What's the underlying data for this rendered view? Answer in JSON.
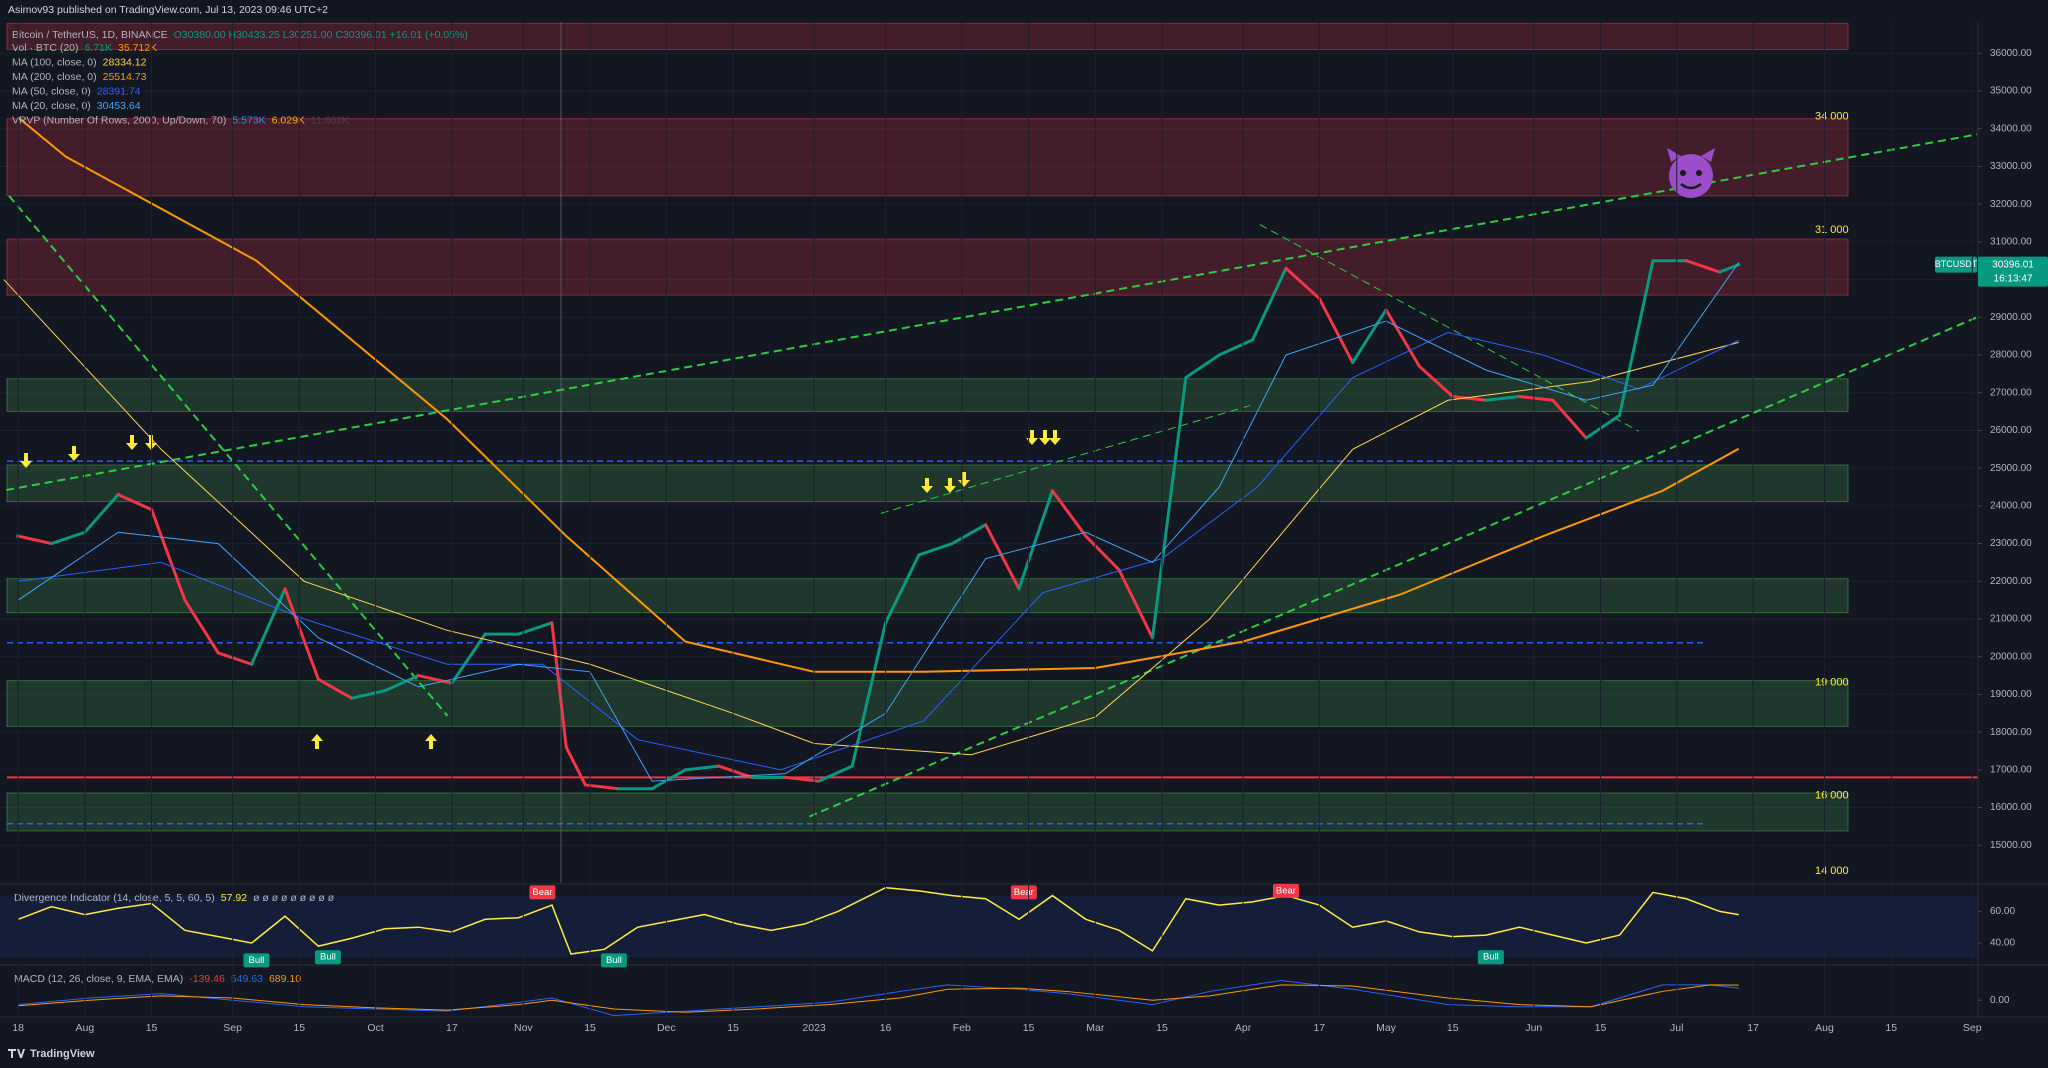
{
  "header": "Asimov93 published on TradingView.com, Jul 13, 2023 09:46 UTC+2",
  "footer": "TradingView",
  "chart_data": [
    {
      "type": "line",
      "title": "Bitcoin / TetherUS, 1D, BINANCE",
      "quote": "O30380.00 H30433.25 L30251.00 C30396.01 +16.01 (+0.05%)",
      "volume_legend": {
        "label": "Vol · BTC (20)",
        "values": [
          "6.71K",
          "35.712K"
        ],
        "colors": [
          "#089981",
          "#ff9800"
        ]
      },
      "vrvp_legend": {
        "label": "VRVP (Number Of Rows, 2000, Up/Down, 70)",
        "values": [
          "5.573K",
          "6.029K",
          "11.602K"
        ],
        "colors": [
          "#2196f3",
          "#ffb300",
          "#434651"
        ]
      },
      "countdown": "16:13:47",
      "xlim": [
        -3.8,
        411.2
      ],
      "ylim": [
        14000,
        36830
      ],
      "grid": true,
      "up_color": "#089981",
      "down_color": "#f23645",
      "xticks": [
        {
          "value": 0,
          "label": "18"
        },
        {
          "value": 14,
          "label": "Aug"
        },
        {
          "value": 28,
          "label": "15"
        },
        {
          "value": 45,
          "label": "Sep"
        },
        {
          "value": 59,
          "label": "15"
        },
        {
          "value": 75,
          "label": "Oct"
        },
        {
          "value": 91,
          "label": "17"
        },
        {
          "value": 106,
          "label": "Nov"
        },
        {
          "value": 120,
          "label": "15"
        },
        {
          "value": 136,
          "label": "Dec"
        },
        {
          "value": 150,
          "label": "15"
        },
        {
          "value": 167,
          "label": "2023"
        },
        {
          "value": 182,
          "label": "16"
        },
        {
          "value": 198,
          "label": "Feb"
        },
        {
          "value": 212,
          "label": "15"
        },
        {
          "value": 226,
          "label": "Mar"
        },
        {
          "value": 240,
          "label": "15"
        },
        {
          "value": 257,
          "label": "Apr"
        },
        {
          "value": 273,
          "label": "17"
        },
        {
          "value": 287,
          "label": "May"
        },
        {
          "value": 301,
          "label": "15"
        },
        {
          "value": 318,
          "label": "Jun"
        },
        {
          "value": 332,
          "label": "15"
        },
        {
          "value": 348,
          "label": "Jul"
        },
        {
          "value": 364,
          "label": "17"
        },
        {
          "value": 379,
          "label": "Aug"
        },
        {
          "value": 393,
          "label": "15"
        },
        {
          "value": 410,
          "label": "Sep"
        }
      ],
      "yticks": [
        {
          "value": 15000,
          "label": "15000.00"
        },
        {
          "value": 16000,
          "label": "16000.00"
        },
        {
          "value": 17000,
          "label": "17000.00"
        },
        {
          "value": 18000,
          "label": "18000.00"
        },
        {
          "value": 19000,
          "label": "19000.00"
        },
        {
          "value": 20000,
          "label": "20000.00"
        },
        {
          "value": 21000,
          "label": "21000.00"
        },
        {
          "value": 22000,
          "label": "22000.00"
        },
        {
          "value": 23000,
          "label": "23000.00"
        },
        {
          "value": 24000,
          "label": "24000.00"
        },
        {
          "value": 25000,
          "label": "25000.00"
        },
        {
          "value": 26000,
          "label": "26000.00"
        },
        {
          "value": 27000,
          "label": "27000.00"
        },
        {
          "value": 28000,
          "label": "28000.00"
        },
        {
          "value": 29000,
          "label": "29000.00"
        },
        {
          "value": 30000,
          "label": "30000.00"
        },
        {
          "value": 31000,
          "label": "31000.00"
        },
        {
          "value": 32000,
          "label": "32000.00"
        },
        {
          "value": 33000,
          "label": "33000.00"
        },
        {
          "value": 34000,
          "label": "34000.00"
        },
        {
          "value": 35000,
          "label": "35000.00"
        },
        {
          "value": 36000,
          "label": "36000.00"
        }
      ],
      "zones": [
        {
          "from": 36100,
          "to": 36795,
          "color": "#f23645"
        },
        {
          "from": 32220,
          "to": 34265,
          "color": "#f23645"
        },
        {
          "from": 29588,
          "to": 31077,
          "color": "#f23645"
        },
        {
          "from": 26504,
          "to": 27370,
          "color": "#4caf50"
        },
        {
          "from": 24113,
          "to": 25083,
          "color": "#4caf50"
        },
        {
          "from": 21168,
          "to": 22069,
          "color": "#4caf50"
        },
        {
          "from": 18153,
          "to": 19366,
          "color": "#4caf50"
        },
        {
          "from": 15381,
          "to": 16386,
          "color": "#4caf50"
        }
      ],
      "levels": [
        {
          "value": 34000,
          "label": "34 000"
        },
        {
          "value": 31000,
          "label": "31 000"
        },
        {
          "value": 19000,
          "label": "19 000"
        },
        {
          "value": 16000,
          "label": "16 000"
        },
        {
          "value": 14000,
          "label": "14 000"
        }
      ],
      "hlines": [
        {
          "value": 16800,
          "color": "#f23645",
          "dashed": false
        },
        {
          "value": 25187,
          "color": "#2962ff",
          "dashed": true
        },
        {
          "value": 20370,
          "color": "#2962ff",
          "dashed": true
        },
        {
          "value": 15570,
          "color": "#2962ff",
          "dashed": true
        }
      ],
      "trendlines": [
        {
          "x": [
            -1.9,
            90.1
          ],
          "y": [
            32220,
            18430
          ],
          "color": "#2ecc40",
          "width": 2
        },
        {
          "x": [
            -2.5,
            411
          ],
          "y": [
            24420,
            33850
          ],
          "color": "#2ecc40",
          "width": 2
        },
        {
          "x": [
            166,
            411
          ],
          "y": [
            15760,
            29000
          ],
          "color": "#2ecc40",
          "width": 2
        },
        {
          "x": [
            260.5,
            340
          ],
          "y": [
            31460,
            25980
          ],
          "color": "#2ecc40",
          "width": 1
        },
        {
          "x": [
            181,
            259
          ],
          "y": [
            23800,
            26680
          ],
          "color": "#2ecc40",
          "width": 1
        }
      ],
      "series": [
        {
          "name": "BTCUSDT",
          "color": "#d1d4dc",
          "style": "updown",
          "x": [
            0,
            7,
            14,
            21,
            28,
            35,
            42,
            49,
            56,
            63,
            70,
            77,
            84,
            91,
            98,
            105,
            112,
            115,
            119,
            126,
            133,
            140,
            147,
            154,
            161,
            168,
            175,
            182,
            189,
            196,
            203,
            210,
            217,
            224,
            231,
            238,
            245,
            252,
            259,
            266,
            273,
            280,
            287,
            294,
            301,
            308,
            315,
            322,
            329,
            336,
            343,
            350,
            357,
            361
          ],
          "values": [
            23200,
            23000,
            23300,
            24300,
            23900,
            21500,
            20100,
            19800,
            21800,
            19400,
            18900,
            19100,
            19500,
            19300,
            20600,
            20600,
            20900,
            17600,
            16600,
            16500,
            16500,
            17000,
            17100,
            16800,
            16800,
            16700,
            17100,
            20900,
            22700,
            23000,
            23500,
            21800,
            24400,
            23200,
            22300,
            20500,
            27400,
            28000,
            28400,
            30300,
            29500,
            27800,
            29200,
            27700,
            26900,
            26800,
            26900,
            26800,
            25800,
            26400,
            30500,
            30500,
            30200,
            30396.01
          ]
        },
        {
          "name": "MA (100, close, 0)",
          "color": "#ffd54f",
          "width": 1,
          "x": [
            -3,
            30,
            60,
            90,
            120,
            150,
            167,
            200,
            226,
            250,
            280,
            300,
            330,
            361
          ],
          "values": [
            30000,
            25500,
            22000,
            20700,
            19800,
            18500,
            17700,
            17400,
            18400,
            21000,
            25500,
            26800,
            27300,
            28334.12
          ]
        },
        {
          "name": "MA (200, close, 0)",
          "color": "#ff9800",
          "width": 2,
          "x": [
            0,
            10,
            50,
            90,
            115,
            140,
            167,
            190,
            226,
            257,
            290,
            320,
            345,
            361
          ],
          "values": [
            34300,
            33260,
            30500,
            26300,
            23200,
            20400,
            19600,
            19600,
            19700,
            20400,
            21650,
            23200,
            24400,
            25514.73
          ]
        },
        {
          "name": "MA (50, close, 0)",
          "color": "#2962ff",
          "width": 1,
          "x": [
            0,
            30,
            60,
            90,
            110,
            130,
            160,
            190,
            215,
            240,
            260,
            280,
            300,
            320,
            340,
            361
          ],
          "values": [
            22000,
            22500,
            21000,
            19800,
            19800,
            17800,
            17000,
            18300,
            21700,
            22600,
            24500,
            27400,
            28600,
            28000,
            27100,
            28391.74
          ]
        },
        {
          "name": "MA (20, close, 0)",
          "color": "#42a5f5",
          "width": 1,
          "x": [
            0,
            21,
            42,
            63,
            84,
            105,
            120,
            133,
            161,
            182,
            203,
            224,
            238,
            252,
            266,
            287,
            308,
            329,
            343,
            361
          ],
          "values": [
            21500,
            23300,
            23000,
            20500,
            19200,
            19800,
            19600,
            16700,
            16900,
            18500,
            22600,
            23300,
            22500,
            24500,
            28000,
            28900,
            27600,
            26800,
            27200,
            30453.64
          ]
        }
      ]
    },
    {
      "type": "line",
      "title": "Divergence Indicator (14, close, 5, 5, 60, 5)",
      "flags": "ø ø ø ø ø ø ø ø ø",
      "xlim": [
        -3.8,
        411.2
      ],
      "ylim": [
        26.7,
        76.7
      ],
      "band": [
        31,
        70
      ],
      "yticks": [
        {
          "value": 60,
          "label": "60.00"
        },
        {
          "value": 40,
          "label": "40.00"
        }
      ],
      "bear_color": "#f23645",
      "bull_color": "#089981",
      "series": [
        {
          "color": "#ffeb3b",
          "width": 1.5,
          "x": [
            0,
            7,
            14,
            21,
            28,
            35,
            42,
            49,
            56,
            63,
            70,
            77,
            84,
            91,
            98,
            105,
            112,
            116,
            123,
            130,
            137,
            144,
            151,
            158,
            165,
            172,
            182,
            189,
            196,
            203,
            210,
            217,
            224,
            231,
            238,
            245,
            252,
            259,
            266,
            273,
            280,
            287,
            294,
            301,
            308,
            315,
            322,
            329,
            336,
            343,
            350,
            357,
            361
          ],
          "values": [
            55,
            63,
            58,
            62,
            65,
            48,
            44,
            40,
            57,
            38,
            43,
            49,
            50,
            47,
            55,
            56,
            64,
            33,
            36,
            50,
            54,
            58,
            52,
            48,
            52,
            60,
            75,
            73,
            70,
            68,
            55,
            70,
            55,
            48,
            35,
            68,
            64,
            66,
            70,
            64,
            50,
            54,
            47,
            44,
            45,
            50,
            45,
            40,
            45,
            72,
            68,
            60,
            57.92
          ]
        }
      ],
      "annotations": [
        {
          "text": "Bear",
          "x": 110,
          "y": 72
        },
        {
          "text": "Bull",
          "x": 50,
          "y": 29
        },
        {
          "text": "Bull",
          "x": 65,
          "y": 31
        },
        {
          "text": "Bull",
          "x": 125,
          "y": 29
        },
        {
          "text": "Bear",
          "x": 211,
          "y": 72
        },
        {
          "text": "Bear",
          "x": 266,
          "y": 73
        },
        {
          "text": "Bull",
          "x": 309,
          "y": 31
        }
      ]
    },
    {
      "type": "line",
      "title": "MACD (12, 26, close, 9, EMA, EMA)",
      "legend": [
        "-139.46",
        "549.63",
        "689.10"
      ],
      "legend_colors": [
        "#f23645",
        "#2962ff",
        "#ff9800"
      ],
      "xlim": [
        -3.8,
        411.2
      ],
      "ylim": [
        -720,
        1560
      ],
      "yticks": [
        {
          "value": 0,
          "label": "0.00"
        }
      ],
      "series": [
        {
          "color": "#2962ff",
          "width": 1,
          "x": [
            0,
            15,
            30,
            45,
            60,
            75,
            90,
            105,
            112,
            125,
            140,
            155,
            170,
            185,
            195,
            210,
            220,
            238,
            250,
            265,
            280,
            300,
            315,
            330,
            345,
            355,
            361
          ],
          "values": [
            -200,
            100,
            300,
            0,
            -300,
            -400,
            -500,
            -100,
            100,
            -700,
            -500,
            -300,
            -100,
            400,
            700,
            500,
            300,
            -200,
            400,
            900,
            500,
            -200,
            -300,
            -300,
            700,
            700,
            549.63
          ]
        },
        {
          "color": "#ff9800",
          "width": 1,
          "x": [
            0,
            15,
            30,
            45,
            60,
            75,
            90,
            105,
            112,
            125,
            140,
            155,
            170,
            185,
            195,
            210,
            220,
            238,
            250,
            265,
            280,
            300,
            315,
            330,
            345,
            355,
            361
          ],
          "values": [
            -250,
            0,
            200,
            100,
            -200,
            -350,
            -450,
            -200,
            0,
            -400,
            -550,
            -400,
            -200,
            100,
            500,
            550,
            400,
            0,
            200,
            700,
            650,
            100,
            -200,
            -300,
            400,
            700,
            689.1
          ]
        }
      ]
    }
  ]
}
